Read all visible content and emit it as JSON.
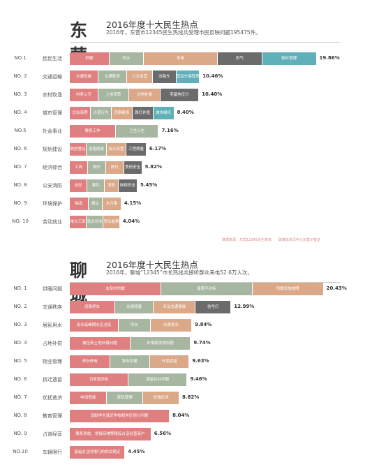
{
  "colors": [
    "#e07f80",
    "#a6b6a0",
    "#dba888",
    "#6b6b6b",
    "#5fb0b8"
  ],
  "source": "数据来源：东营12345民生热线　　融媒体资讯中心东营记者站",
  "chart_data": [
    {
      "type": "bar",
      "city": "东营",
      "title": "2016年度十大民生热点",
      "subtitle": "2016年，东营市12345民生热线共受理市民反映问题195475件。",
      "xlim": [
        0,
        20.5
      ],
      "rows": [
        {
          "rank": "NO.1",
          "category": "民民生活",
          "value": 19.86,
          "label": "19.86%",
          "segments": [
            {
              "label": "供暖",
              "share": 0.16
            },
            {
              "label": "供水",
              "share": 0.14
            },
            {
              "label": "供电",
              "share": 0.3
            },
            {
              "label": "供气",
              "share": 0.18
            },
            {
              "label": "物业管理",
              "share": 0.22
            }
          ]
        },
        {
          "rank": "NO. 2",
          "category": "交通运输",
          "value": 10.46,
          "label": "10.46%",
          "segments": [
            {
              "label": "交通设施",
              "share": 0.22
            },
            {
              "label": "交通秩序",
              "share": 0.22
            },
            {
              "label": "公交运营",
              "share": 0.2
            },
            {
              "label": "出租车",
              "share": 0.18
            },
            {
              "label": "营运车辆管理",
              "share": 0.18
            }
          ]
        },
        {
          "rank": "NO. 3",
          "category": "农村牧渔",
          "value": 10.4,
          "label": "10.40%",
          "segments": [
            {
              "label": "村务公开",
              "share": 0.22
            },
            {
              "label": "土地流转",
              "share": 0.24
            },
            {
              "label": "占地补偿",
              "share": 0.24
            },
            {
              "label": "宅基地征分",
              "share": 0.3
            }
          ]
        },
        {
          "rank": "NO. 4",
          "category": "城市管理",
          "value": 8.4,
          "label": "8.40%",
          "segments": [
            {
              "label": "垃圾清理",
              "share": 0.2
            },
            {
              "label": "占道行为",
              "share": 0.2
            },
            {
              "label": "违章建设",
              "share": 0.2
            },
            {
              "label": "路灯井盖",
              "share": 0.2
            },
            {
              "label": "城市绿化",
              "share": 0.2
            }
          ]
        },
        {
          "rank": "NO.5",
          "category": "社会事业",
          "value": 7.16,
          "label": "7.16%",
          "segments": [
            {
              "label": "教育工作",
              "share": 0.52
            },
            {
              "label": "卫生计生",
              "share": 0.48
            }
          ]
        },
        {
          "rank": "NO. 6",
          "category": "规划建设",
          "value": 6.17,
          "label": "6.17%",
          "segments": [
            {
              "label": "购房登记",
              "share": 0.22
            },
            {
              "label": "道路修建",
              "share": 0.26
            },
            {
              "label": "拆迁安置",
              "share": 0.26
            },
            {
              "label": "工程质量",
              "share": 0.26
            }
          ]
        },
        {
          "rank": "NO. 7",
          "category": "经济综合",
          "value": 5.82,
          "label": "5.82%",
          "segments": [
            {
              "label": "工商",
              "share": 0.25
            },
            {
              "label": "物价",
              "share": 0.25
            },
            {
              "label": "旅行",
              "share": 0.25
            },
            {
              "label": "食药安全",
              "share": 0.25
            }
          ]
        },
        {
          "rank": "NO. 8",
          "category": "公安消防",
          "value": 5.45,
          "label": "5.45%",
          "segments": [
            {
              "label": "治安",
              "share": 0.26
            },
            {
              "label": "案件",
              "share": 0.26
            },
            {
              "label": "消防",
              "share": 0.2
            },
            {
              "label": "网络安全",
              "share": 0.28
            }
          ]
        },
        {
          "rank": "NO. 9",
          "category": "环境保护",
          "value": 4.15,
          "label": "4.15%",
          "segments": [
            {
              "label": "噪音",
              "share": 0.36
            },
            {
              "label": "烟尘",
              "share": 0.28
            },
            {
              "label": "水污染",
              "share": 0.36
            }
          ]
        },
        {
          "rank": "NO. 10",
          "category": "劳动就业",
          "value": 4.04,
          "label": "4.04%",
          "segments": [
            {
              "label": "拖欠工资",
              "share": 0.34
            },
            {
              "label": "就业创业",
              "share": 0.33
            },
            {
              "label": "劳动监察",
              "share": 0.33
            }
          ]
        }
      ]
    },
    {
      "type": "bar",
      "city": "聊城",
      "title": "2016年度十大民生热点",
      "subtitle": "2016年，聊城“12345”市长热线共接听群众来电52.6万人次。",
      "xlim": [
        0,
        20.5
      ],
      "rows": [
        {
          "rank": "NO. 1",
          "category": "供暖问题",
          "value": 20.43,
          "label": "20.43%",
          "segments": [
            {
              "label": "未及时供暖",
              "share": 0.36
            },
            {
              "label": "温度不达标",
              "share": 0.36
            },
            {
              "label": "供暖设施故障",
              "share": 0.28
            }
          ]
        },
        {
          "rank": "NO. 2",
          "category": "交通秩序",
          "value": 12.99,
          "label": "12.99%",
          "segments": [
            {
              "label": "违章停车",
              "share": 0.28
            },
            {
              "label": "交通堵塞",
              "share": 0.24
            },
            {
              "label": "涉及交通事故",
              "share": 0.26
            },
            {
              "label": "信号灯",
              "share": 0.22
            }
          ]
        },
        {
          "rank": "NO. 3",
          "category": "居民用水",
          "value": 9.84,
          "label": "9.84%",
          "segments": [
            {
              "label": "用水高峰期水压过低",
              "share": 0.4
            },
            {
              "label": "停水",
              "share": 0.26
            },
            {
              "label": "水质发浑",
              "share": 0.34
            }
          ]
        },
        {
          "rank": "NO. 4",
          "category": "占地补偿",
          "value": 9.74,
          "label": "9.74%",
          "segments": [
            {
              "label": "被征收土地补偿问题",
              "share": 0.5
            },
            {
              "label": "补偿款发放问题",
              "share": 0.5
            }
          ]
        },
        {
          "rank": "NO. 5",
          "category": "物业管理",
          "value": 9.63,
          "label": "9.63%",
          "segments": [
            {
              "label": "停水停电",
              "share": 0.34
            },
            {
              "label": "物业供暖",
              "share": 0.33
            },
            {
              "label": "开发遗留",
              "share": 0.33
            }
          ]
        },
        {
          "rank": "NO. 6",
          "category": "拆迁遗留",
          "value": 9.46,
          "label": "9.46%",
          "segments": [
            {
              "label": "引发冒河水",
              "share": 0.5
            },
            {
              "label": "遗留坑井问题",
              "share": 0.5
            }
          ]
        },
        {
          "rank": "NO. 7",
          "category": "优抚救济",
          "value": 8.82,
          "label": "8.82%",
          "segments": [
            {
              "label": "申请低保",
              "share": 0.34
            },
            {
              "label": "家政管理",
              "share": 0.33
            },
            {
              "label": "抚恤优待",
              "share": 0.33
            }
          ]
        },
        {
          "rank": "NO. 8",
          "category": "教育管理",
          "value": 8.04,
          "label": "8.04%",
          "segments": [
            {
              "label": "适龄学生就近学校和学区划分问题",
              "share": 1.0
            }
          ]
        },
        {
          "rank": "NO. 9",
          "category": "占道经营",
          "value": 6.56,
          "label": "6.56%",
          "segments": [
            {
              "label": "联系西校、举报商铺等路段占道经营商户",
              "share": 1.0
            }
          ]
        },
        {
          "rank": "NO.10",
          "category": "车辆限行",
          "value": 4.45,
          "label": "4.45%",
          "segments": [
            {
              "label": "普遍关注时限行的相关规定",
              "share": 1.0
            }
          ]
        }
      ]
    }
  ]
}
